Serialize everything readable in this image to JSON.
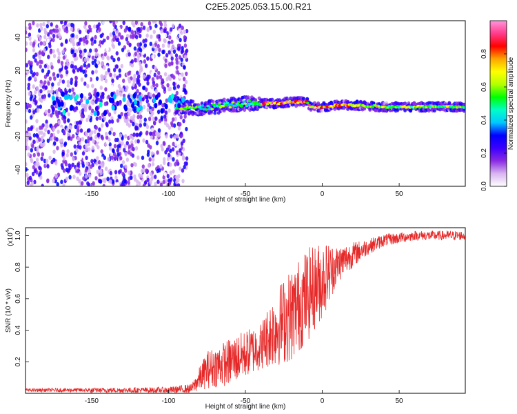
{
  "page": {
    "title": "C2E5.2025.053.15.00.R21"
  },
  "chart_data": [
    {
      "type": "heatmap",
      "xlabel": "Height of straight line (km)",
      "ylabel": "Frequency (Hz)",
      "xlim": [
        -193,
        93
      ],
      "ylim": [
        -50,
        50
      ],
      "xticks": [
        -150,
        -100,
        -50,
        0,
        50
      ],
      "yticks": [
        -40,
        -20,
        0,
        20,
        40
      ],
      "colorbar": {
        "label": "Normalized spectral amplitude",
        "range": [
          0,
          1
        ],
        "ticks": [
          "0.0",
          "0.2",
          "0.4",
          "0.6",
          "0.8"
        ],
        "colors": [
          "#ffffff",
          "#d8b4f0",
          "#8a2be2",
          "#3b00ff",
          "#0000ff",
          "#00c8ff",
          "#00ffc8",
          "#00ff00",
          "#b4ff00",
          "#ffff00",
          "#ffa500",
          "#ff0000",
          "#ff3c8c",
          "#ff96dc"
        ]
      },
      "ridge": [
        {
          "x": -90,
          "y": -2
        },
        {
          "x": -80,
          "y": -3
        },
        {
          "x": -70,
          "y": -2
        },
        {
          "x": -60,
          "y": -1
        },
        {
          "x": -50,
          "y": 0
        },
        {
          "x": -40,
          "y": 0
        },
        {
          "x": -30,
          "y": 0
        },
        {
          "x": -20,
          "y": 1
        },
        {
          "x": -10,
          "y": 1
        },
        {
          "x": -8,
          "y": -2
        },
        {
          "x": 0,
          "y": -2
        },
        {
          "x": 10,
          "y": -1
        },
        {
          "x": 20,
          "y": -1
        },
        {
          "x": 40,
          "y": -2
        },
        {
          "x": 60,
          "y": -2
        },
        {
          "x": 80,
          "y": -2
        },
        {
          "x": 93,
          "y": -2
        }
      ]
    },
    {
      "type": "line",
      "xlabel": "Height of straight line (km)",
      "ylabel": "SNR (10 * v/v)",
      "yscale_label": "(x10",
      "yscale_exponent": "4",
      "xlim": [
        -193,
        93
      ],
      "ylim": [
        0,
        1.05
      ],
      "xticks": [
        -150,
        -100,
        -50,
        0,
        50
      ],
      "yticks": [
        "0.2",
        "0.4",
        "0.6",
        "0.8",
        "1.0"
      ],
      "color": "#e62828",
      "envelope": [
        {
          "x": -193,
          "y": 0.02,
          "amp": 0.01
        },
        {
          "x": -100,
          "y": 0.02,
          "amp": 0.02
        },
        {
          "x": -85,
          "y": 0.03,
          "amp": 0.03
        },
        {
          "x": -75,
          "y": 0.15,
          "amp": 0.12
        },
        {
          "x": -60,
          "y": 0.2,
          "amp": 0.15
        },
        {
          "x": -50,
          "y": 0.25,
          "amp": 0.15
        },
        {
          "x": -40,
          "y": 0.3,
          "amp": 0.15
        },
        {
          "x": -30,
          "y": 0.42,
          "amp": 0.25
        },
        {
          "x": -20,
          "y": 0.5,
          "amp": 0.3
        },
        {
          "x": -10,
          "y": 0.62,
          "amp": 0.3
        },
        {
          "x": 0,
          "y": 0.72,
          "amp": 0.25
        },
        {
          "x": 10,
          "y": 0.82,
          "amp": 0.12
        },
        {
          "x": 20,
          "y": 0.88,
          "amp": 0.08
        },
        {
          "x": 30,
          "y": 0.93,
          "amp": 0.05
        },
        {
          "x": 40,
          "y": 0.97,
          "amp": 0.04
        },
        {
          "x": 60,
          "y": 1.0,
          "amp": 0.03
        },
        {
          "x": 93,
          "y": 1.0,
          "amp": 0.03
        }
      ]
    }
  ]
}
